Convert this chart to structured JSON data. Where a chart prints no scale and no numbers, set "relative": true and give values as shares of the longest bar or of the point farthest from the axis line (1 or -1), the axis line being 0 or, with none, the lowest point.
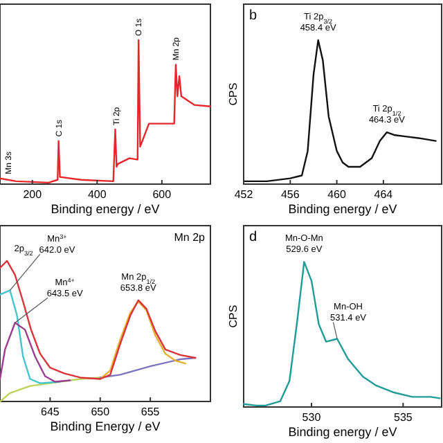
{
  "chart_data": [
    {
      "type": "line",
      "relative": true,
      "xlabel": "Binding energy / eV",
      "xlim": [
        100,
        750
      ],
      "xticks": [
        200,
        400,
        600
      ],
      "tick_labels": "x",
      "series": [
        {
          "color": "#e8262a",
          "x": [
            100,
            150,
            250,
            278,
            281,
            285,
            350,
            450,
            456,
            460,
            464,
            500,
            525,
            528,
            533,
            560,
            600,
            638,
            643,
            648,
            654,
            660,
            700,
            750
          ],
          "values": [
            0.04,
            0.02,
            0.01,
            0.03,
            0.3,
            0.05,
            0.03,
            0.02,
            0.38,
            0.12,
            0.14,
            0.18,
            0.17,
            1,
            0.26,
            0.42,
            0.42,
            0.42,
            0.83,
            0.61,
            0.75,
            0.61,
            0.55,
            0.54
          ]
        }
      ],
      "annotations": [
        {
          "text": "Mn 3s",
          "x": 100,
          "y": 0.04
        },
        {
          "text": "C 1s",
          "x": 281,
          "y": 0.3
        },
        {
          "text": "Ti 2p",
          "x": 460,
          "y": 0.38
        },
        {
          "text": "O 1s",
          "x": 528,
          "y": 1
        },
        {
          "text": "Mn 2p",
          "x": 643,
          "y": 0.83
        }
      ]
    },
    {
      "type": "line",
      "relative": true,
      "title": "b",
      "ylabel": "CPS",
      "xlabel": "Binding energy / eV",
      "xlim": [
        452,
        469
      ],
      "xticks": [
        452,
        456,
        460,
        464
      ],
      "tick_labels": "x",
      "series": [
        {
          "color": "#111111",
          "x": [
            452,
            454,
            456,
            457,
            457.5,
            458,
            458.4,
            458.8,
            459.3,
            460,
            460.5,
            461,
            462,
            463,
            463.7,
            464.3,
            465,
            466,
            467,
            468.5
          ],
          "values": [
            0.02,
            0.02,
            0.04,
            0.06,
            0.23,
            0.76,
            1,
            0.86,
            0.47,
            0.23,
            0.15,
            0.12,
            0.12,
            0.18,
            0.3,
            0.36,
            0.34,
            0.33,
            0.32,
            0.3
          ]
        }
      ],
      "annotations": [
        {
          "text": "Ti 2p$_{3/2}$\n458.4 eV",
          "x": 458.4,
          "y": 1
        },
        {
          "text": "Ti 2p$_{1/2}$\n464.3 eV",
          "x": 464.3,
          "y": 0.36
        }
      ]
    },
    {
      "type": "line",
      "relative": true,
      "xlabel": "Binding Energy / eV",
      "xlim": [
        640,
        661
      ],
      "xticks": [
        645,
        650,
        655
      ],
      "tick_labels": "x",
      "series": [
        {
          "color": "#bcd35a",
          "x": [
            640,
            641,
            643,
            645,
            648,
            650
          ],
          "values": [
            0,
            0.06,
            0.11,
            0.13,
            0.16,
            0.17
          ]
        },
        {
          "color": "#7c74c0",
          "x": [
            650,
            652,
            655,
            658,
            659.5
          ],
          "values": [
            0.17,
            0.19,
            0.25,
            0.3,
            0.31
          ]
        },
        {
          "color": "#41c6d0",
          "x": [
            640,
            641,
            641.7,
            642.3,
            643,
            644,
            646
          ],
          "values": [
            0.76,
            0.79,
            0.61,
            0.32,
            0.16,
            0.13,
            0.14
          ]
        },
        {
          "color": "#9b3c8f",
          "x": [
            640,
            640.5,
            641.5,
            642.5,
            643.5,
            644.5,
            645.5,
            647
          ],
          "values": [
            0.16,
            0.37,
            0.56,
            0.51,
            0.32,
            0.18,
            0.14,
            0.15
          ]
        },
        {
          "color": "#e8b030",
          "x": [
            650,
            651,
            652,
            653,
            653.8,
            654.6,
            655.5,
            656.5,
            657.5,
            658.5
          ],
          "values": [
            0.16,
            0.22,
            0.44,
            0.63,
            0.71,
            0.65,
            0.47,
            0.34,
            0.29,
            0.27
          ]
        },
        {
          "color": "#d9343a",
          "x": [
            640,
            640.7,
            641.5,
            642.3,
            643.1,
            644,
            645,
            646.4,
            648,
            650,
            651,
            652,
            653,
            653.8,
            654.6,
            655.5,
            656.5,
            658,
            659.5
          ],
          "values": [
            0.95,
            1,
            0.9,
            0.71,
            0.51,
            0.34,
            0.24,
            0.2,
            0.17,
            0.16,
            0.19,
            0.41,
            0.61,
            0.72,
            0.66,
            0.5,
            0.37,
            0.33,
            0.31
          ]
        }
      ],
      "annotations": [
        "Mn 2p",
        {
          "text": "2p$_{3/2}$",
          "x": 641,
          "y": 1
        },
        {
          "text": "Mn$^{3+}$\n642.0 eV",
          "x": 641,
          "y": 0.79
        },
        {
          "text": "Mn$^{4+}$\n643.5 eV",
          "x": 641.5,
          "y": 0.56
        },
        {
          "text": "Mn 2p$_{1/2}$\n653.8 eV",
          "x": 653.8,
          "y": 0.72
        }
      ]
    },
    {
      "type": "line",
      "relative": true,
      "title": "d",
      "ylabel": "CPS",
      "xlabel": "Binding energy / eV",
      "xlim": [
        526.3,
        537.1
      ],
      "xticks": [
        530,
        535
      ],
      "tick_labels": "x",
      "series": [
        {
          "color": "#1f9c98",
          "x": [
            526.3,
            527,
            527.5,
            528.3,
            528.8,
            529.2,
            529.6,
            530,
            530.4,
            530.8,
            531.4,
            532,
            532.8,
            533.5,
            534.5,
            535.5,
            536.5,
            537
          ],
          "values": [
            0.02,
            0.01,
            0.01,
            0.04,
            0.18,
            0.57,
            1,
            0.87,
            0.57,
            0.45,
            0.47,
            0.33,
            0.21,
            0.15,
            0.1,
            0.07,
            0.07,
            0.06
          ]
        }
      ],
      "annotations": [
        {
          "text": "Mn-O-Mn\n529.6 eV",
          "x": 529.6,
          "y": 1
        },
        {
          "text": "Mn-OH\n531.4 eV",
          "x": 531.4,
          "y": 0.47
        }
      ]
    }
  ]
}
